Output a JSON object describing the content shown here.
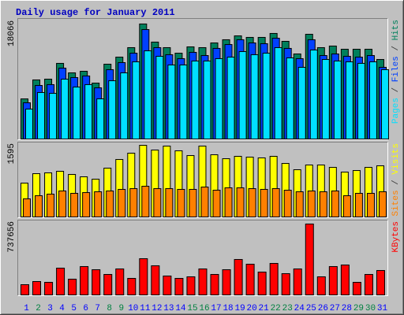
{
  "title": "Daily usage for January 2011",
  "legend_separator": "/",
  "chart_data": [
    {
      "type": "bar",
      "series": [
        {
          "name": "Hits",
          "color": "#00805c",
          "values": [
            6300,
            9280,
            9400,
            11880,
            10390,
            10640,
            8780,
            11750,
            12860,
            14350,
            18066,
            15220,
            14350,
            13480,
            14470,
            14350,
            15090,
            15590,
            16200,
            15960,
            15960,
            16580,
            15340,
            13360,
            16450,
            14350,
            14600,
            14100,
            14100,
            14100,
            12490
          ]
        },
        {
          "name": "Files",
          "color": "#0040ff",
          "values": [
            5690,
            8410,
            8540,
            11130,
            9650,
            9900,
            8040,
            10890,
            12000,
            13480,
            17190,
            14350,
            13240,
            12620,
            13610,
            13110,
            14230,
            14840,
            15590,
            15090,
            14970,
            15830,
            14230,
            12620,
            15590,
            13110,
            13360,
            12990,
            12860,
            13110,
            11260
          ]
        },
        {
          "name": "Pages",
          "color": "#00e0ff",
          "values": [
            4700,
            7300,
            7170,
            9400,
            8160,
            8540,
            6310,
            9150,
            10390,
            12120,
            13850,
            12990,
            11630,
            11630,
            12250,
            12250,
            12620,
            12860,
            13730,
            13240,
            13480,
            14350,
            12740,
            11260,
            13980,
            12490,
            12250,
            12120,
            11880,
            12120,
            10890
          ]
        }
      ],
      "ylim": [
        0,
        18430
      ],
      "yticks": [
        18066
      ]
    },
    {
      "type": "bar",
      "series": [
        {
          "name": "Visits",
          "color": "#ffff00",
          "values": [
            754,
            964,
            982,
            1017,
            947,
            894,
            841,
            1087,
            1280,
            1420,
            1595,
            1490,
            1578,
            1473,
            1367,
            1578,
            1385,
            1297,
            1350,
            1332,
            1315,
            1350,
            1192,
            1052,
            1157,
            1157,
            1104,
            999,
            1034,
            1104,
            1139
          ]
        },
        {
          "name": "Sites",
          "color": "#ff8000",
          "values": [
            403,
            473,
            508,
            579,
            526,
            543,
            561,
            579,
            614,
            631,
            684,
            631,
            631,
            614,
            614,
            666,
            596,
            649,
            649,
            631,
            614,
            631,
            596,
            561,
            579,
            561,
            579,
            473,
            526,
            526,
            561
          ]
        }
      ],
      "ylim": [
        0,
        1648
      ],
      "yticks": [
        1595
      ]
    },
    {
      "type": "bar",
      "categories": [
        "1",
        "2",
        "3",
        "4",
        "5",
        "6",
        "7",
        "8",
        "9",
        "10",
        "11",
        "12",
        "13",
        "14",
        "15",
        "16",
        "17",
        "18",
        "19",
        "20",
        "21",
        "22",
        "23",
        "24",
        "25",
        "26",
        "27",
        "28",
        "29",
        "30",
        "31"
      ],
      "category_colors": [
        "#0000ff",
        "#008040",
        "#0000ff",
        "#0000ff",
        "#0000ff",
        "#0000ff",
        "#0000ff",
        "#008040",
        "#008040",
        "#0000ff",
        "#0000ff",
        "#0000ff",
        "#0000ff",
        "#0000ff",
        "#008040",
        "#008040",
        "#0000ff",
        "#0000ff",
        "#0000ff",
        "#0000ff",
        "#0000ff",
        "#008040",
        "#008040",
        "#0000ff",
        "#0000ff",
        "#0000ff",
        "#0000ff",
        "#0000ff",
        "#008040",
        "#008040",
        "#0000ff"
      ],
      "series": [
        {
          "name": "KBytes",
          "color": "#ff0000",
          "values": [
            106500,
            139300,
            131100,
            278700,
            163900,
            295100,
            262300,
            213100,
            270500,
            172100,
            377000,
            303300,
            196700,
            172100,
            188500,
            270500,
            213100,
            262300,
            368800,
            319600,
            237700,
            327800,
            221300,
            270500,
            737656,
            188500,
            295100,
            311400,
            131100,
            213100,
            254100
          ]
        }
      ],
      "ylim": [
        0,
        770000
      ],
      "yticks": [
        737656
      ]
    }
  ]
}
